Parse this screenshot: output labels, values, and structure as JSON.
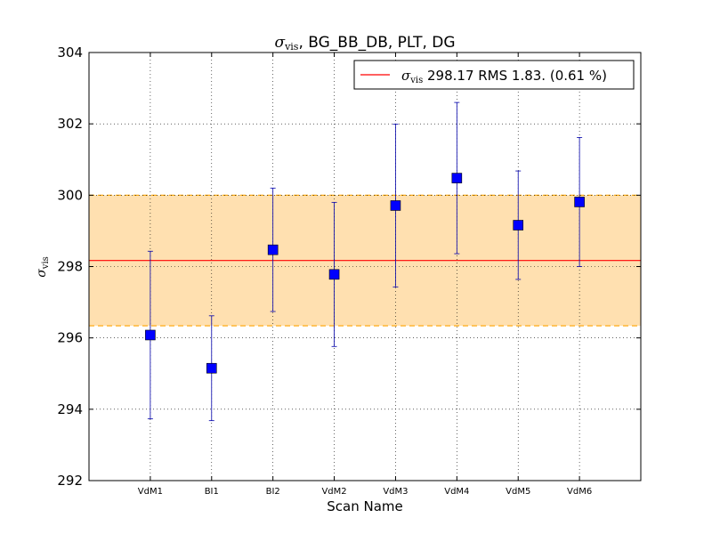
{
  "chart_data": {
    "type": "scatter",
    "title": "σ_vis, BG_BB_DB, PLT, DG",
    "title_symbol": "σ",
    "title_subscript": "vis",
    "title_rest": ", BG_BB_DB, PLT, DG",
    "xlabel": "Scan Name",
    "ylabel_symbol": "σ",
    "ylabel_subscript": "vis",
    "categories": [
      "VdM1",
      "BI1",
      "BI2",
      "VdM2",
      "VdM3",
      "VdM4",
      "VdM5",
      "VdM6"
    ],
    "values": [
      296.08,
      295.15,
      298.47,
      297.78,
      299.71,
      300.48,
      299.16,
      299.81
    ],
    "errors": [
      2.35,
      1.47,
      1.73,
      2.02,
      2.28,
      2.12,
      1.52,
      1.81
    ],
    "ylim": [
      292,
      304
    ],
    "yticks": [
      292,
      294,
      296,
      298,
      300,
      302,
      304
    ],
    "grid": true,
    "mean": 298.17,
    "band": [
      296.34,
      300.0
    ],
    "legend": {
      "position": "top-right",
      "symbol": "σ",
      "subscript": "vis",
      "text": " 298.17 RMS 1.83. (0.61 %)"
    },
    "colors": {
      "marker": "#0000ff",
      "errorbar": "#0000aa",
      "mean_line": "#ff0000",
      "band_fill": "#ffe0b0",
      "band_edge": "#ffa500"
    }
  }
}
